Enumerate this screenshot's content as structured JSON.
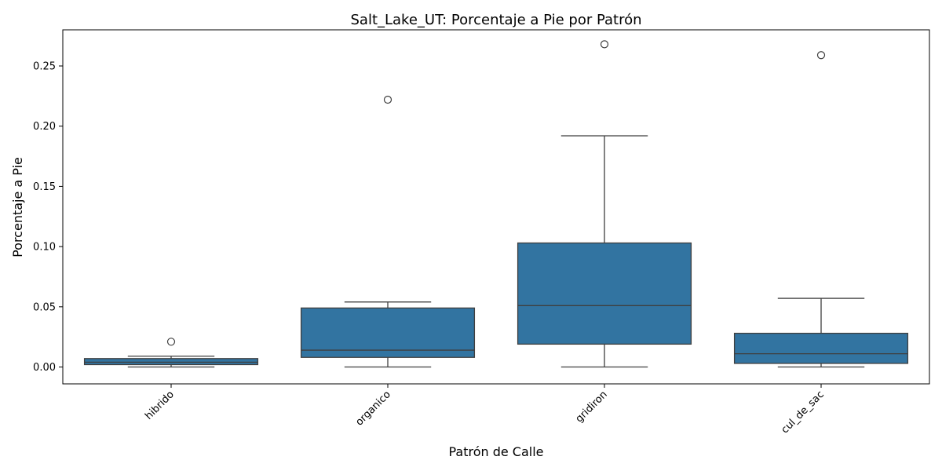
{
  "chart_data": {
    "type": "box",
    "title": "Salt_Lake_UT: Porcentaje a Pie por Patrón",
    "xlabel": "Patrón de Calle",
    "ylabel": "Porcentaje a Pie",
    "ylim": [
      -0.014,
      0.28
    ],
    "yticks": [
      0.0,
      0.05,
      0.1,
      0.15,
      0.2,
      0.25
    ],
    "ytick_labels": [
      "0.00",
      "0.05",
      "0.10",
      "0.15",
      "0.20",
      "0.25"
    ],
    "categories": [
      "hibrido",
      "organico",
      "gridiron",
      "cul_de_sac"
    ],
    "box_color": "#3274a1",
    "line_color": "#3f3f3f",
    "grid": false,
    "boxes": [
      {
        "category": "hibrido",
        "whisker_low": 0.0,
        "q1": 0.002,
        "median": 0.004,
        "q3": 0.007,
        "whisker_high": 0.009,
        "outliers": [
          0.021
        ]
      },
      {
        "category": "organico",
        "whisker_low": 0.0,
        "q1": 0.008,
        "median": 0.014,
        "q3": 0.049,
        "whisker_high": 0.054,
        "outliers": [
          0.222
        ]
      },
      {
        "category": "gridiron",
        "whisker_low": 0.0,
        "q1": 0.019,
        "median": 0.051,
        "q3": 0.103,
        "whisker_high": 0.192,
        "outliers": [
          0.268
        ]
      },
      {
        "category": "cul_de_sac",
        "whisker_low": 0.0,
        "q1": 0.003,
        "median": 0.011,
        "q3": 0.028,
        "whisker_high": 0.057,
        "outliers": [
          0.259
        ]
      }
    ]
  }
}
